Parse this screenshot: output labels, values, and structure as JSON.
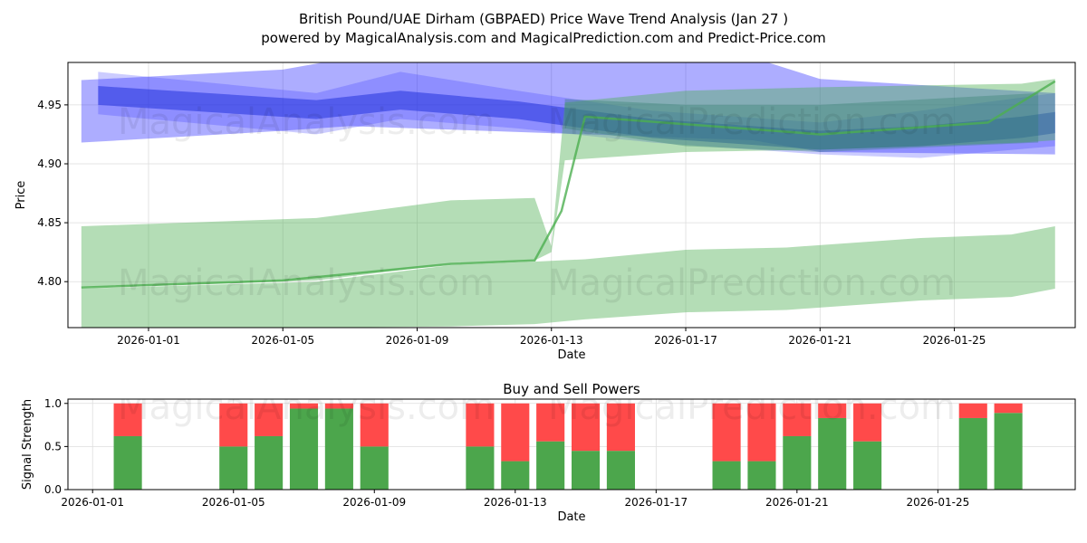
{
  "title_line1": "British Pound/UAE Dirham (GBPAED) Price Wave Trend Analysis (Jan 27 )",
  "title_line2": "powered by MagicalAnalysis.com and MagicalPrediction.com and Predict-Price.com",
  "watermarks": [
    "MagicalAnalysis.com",
    "MagicalPrediction.com"
  ],
  "chart_data": [
    {
      "type": "area",
      "title": "",
      "xlabel": "Date",
      "ylabel": "Price",
      "x_unit": "days since 2026-01-01",
      "xlim": [
        -2.4,
        27.6
      ],
      "ylim": [
        4.761,
        4.986
      ],
      "x_ticks": [
        {
          "d": 0,
          "label": "2026-01-01"
        },
        {
          "d": 4,
          "label": "2026-01-05"
        },
        {
          "d": 8,
          "label": "2026-01-09"
        },
        {
          "d": 12,
          "label": "2026-01-13"
        },
        {
          "d": 16,
          "label": "2026-01-17"
        },
        {
          "d": 20,
          "label": "2026-01-21"
        },
        {
          "d": 24,
          "label": "2026-01-25"
        }
      ],
      "y_ticks": [
        4.8,
        4.85,
        4.9,
        4.95
      ],
      "grid": true,
      "bands": [
        {
          "name": "blue-wide",
          "color": "#0000ff",
          "opacity": 0.32,
          "x": [
            -2,
            4,
            6,
            18,
            20,
            27
          ],
          "upper": [
            4.971,
            4.98,
            4.99,
            4.99,
            4.972,
            4.96
          ],
          "lower": [
            4.918,
            4.928,
            4.932,
            4.92,
            4.91,
            4.908
          ]
        },
        {
          "name": "blue-mid",
          "color": "#3333ff",
          "opacity": 0.25,
          "x": [
            -1.5,
            5,
            7.5,
            11,
            15,
            20,
            23,
            27
          ],
          "upper": [
            4.978,
            4.96,
            4.978,
            4.962,
            4.945,
            4.935,
            4.945,
            4.96
          ],
          "lower": [
            4.942,
            4.925,
            4.938,
            4.93,
            4.918,
            4.908,
            4.905,
            4.915
          ]
        },
        {
          "name": "blue-core",
          "color": "#2233dd",
          "opacity": 0.55,
          "x": [
            -1.5,
            5,
            7.5,
            11,
            15,
            20,
            23,
            26,
            27
          ],
          "upper": [
            4.966,
            4.954,
            4.962,
            4.953,
            4.938,
            4.928,
            4.932,
            4.94,
            4.944
          ],
          "lower": [
            4.95,
            4.938,
            4.946,
            4.938,
            4.922,
            4.912,
            4.915,
            4.922,
            4.926
          ]
        },
        {
          "name": "green-upper",
          "color": "#4caf50",
          "opacity": 0.42,
          "x": [
            -2,
            5,
            9,
            11.5,
            12,
            12.4,
            16,
            20,
            26,
            27
          ],
          "upper": [
            4.847,
            4.854,
            4.869,
            4.871,
            4.83,
            4.952,
            4.962,
            4.965,
            4.968,
            4.972
          ],
          "lower": [
            4.795,
            4.801,
            4.815,
            4.818,
            4.825,
            4.903,
            4.91,
            4.912,
            4.918,
            4.92
          ]
        },
        {
          "name": "green-lower",
          "color": "#4caf50",
          "opacity": 0.42,
          "x": [
            -2,
            5,
            9,
            11.5,
            13,
            16,
            19,
            23,
            25.7,
            27
          ],
          "upper": [
            4.794,
            4.8,
            4.814,
            4.817,
            4.819,
            4.827,
            4.829,
            4.837,
            4.84,
            4.847
          ],
          "lower": [
            4.76,
            4.761,
            4.762,
            4.764,
            4.768,
            4.774,
            4.776,
            4.784,
            4.787,
            4.794
          ]
        },
        {
          "name": "green-overlap",
          "color": "#2e7d6a",
          "opacity": 0.35,
          "x": [
            12.4,
            16,
            20,
            26.5
          ],
          "upper": [
            4.955,
            4.95,
            4.95,
            4.96
          ],
          "lower": [
            4.93,
            4.915,
            4.91,
            4.918
          ]
        }
      ],
      "lines": [
        {
          "name": "green-trend",
          "color": "#4caf50",
          "x": [
            -2,
            4,
            9,
            11.5,
            12.3,
            13,
            20,
            25,
            27
          ],
          "y": [
            4.795,
            4.801,
            4.815,
            4.818,
            4.86,
            4.94,
            4.925,
            4.935,
            4.97
          ]
        }
      ]
    },
    {
      "type": "bar",
      "title": "Buy and Sell Powers",
      "xlabel": "Date",
      "ylabel": "Signal Strength",
      "xlim": [
        -0.7,
        27.9
      ],
      "ylim": [
        0,
        1.05
      ],
      "y_ticks": [
        0.0,
        0.5,
        1.0
      ],
      "x_ticks": [
        {
          "d": 0,
          "label": "2026-01-01"
        },
        {
          "d": 4,
          "label": "2026-01-05"
        },
        {
          "d": 8,
          "label": "2026-01-09"
        },
        {
          "d": 12,
          "label": "2026-01-13"
        },
        {
          "d": 16,
          "label": "2026-01-17"
        },
        {
          "d": 20,
          "label": "2026-01-21"
        },
        {
          "d": 24,
          "label": "2026-01-25"
        }
      ],
      "days": [
        1,
        4,
        5,
        6,
        7,
        8,
        11,
        12,
        13,
        14,
        15,
        18,
        19,
        20,
        21,
        22,
        25,
        26
      ],
      "series": [
        {
          "name": "Buy",
          "color": "#4ca64c",
          "values": [
            0.62,
            0.5,
            0.62,
            0.94,
            0.94,
            0.5,
            0.5,
            0.33,
            0.56,
            0.45,
            0.45,
            0.33,
            0.33,
            0.62,
            0.83,
            0.56,
            0.83,
            0.89
          ]
        },
        {
          "name": "Sell",
          "color": "#ff4a4a",
          "values": [
            0.38,
            0.5,
            0.38,
            0.06,
            0.06,
            0.5,
            0.5,
            0.67,
            0.44,
            0.55,
            0.55,
            0.67,
            0.67,
            0.38,
            0.17,
            0.44,
            0.17,
            0.11
          ]
        }
      ]
    }
  ]
}
